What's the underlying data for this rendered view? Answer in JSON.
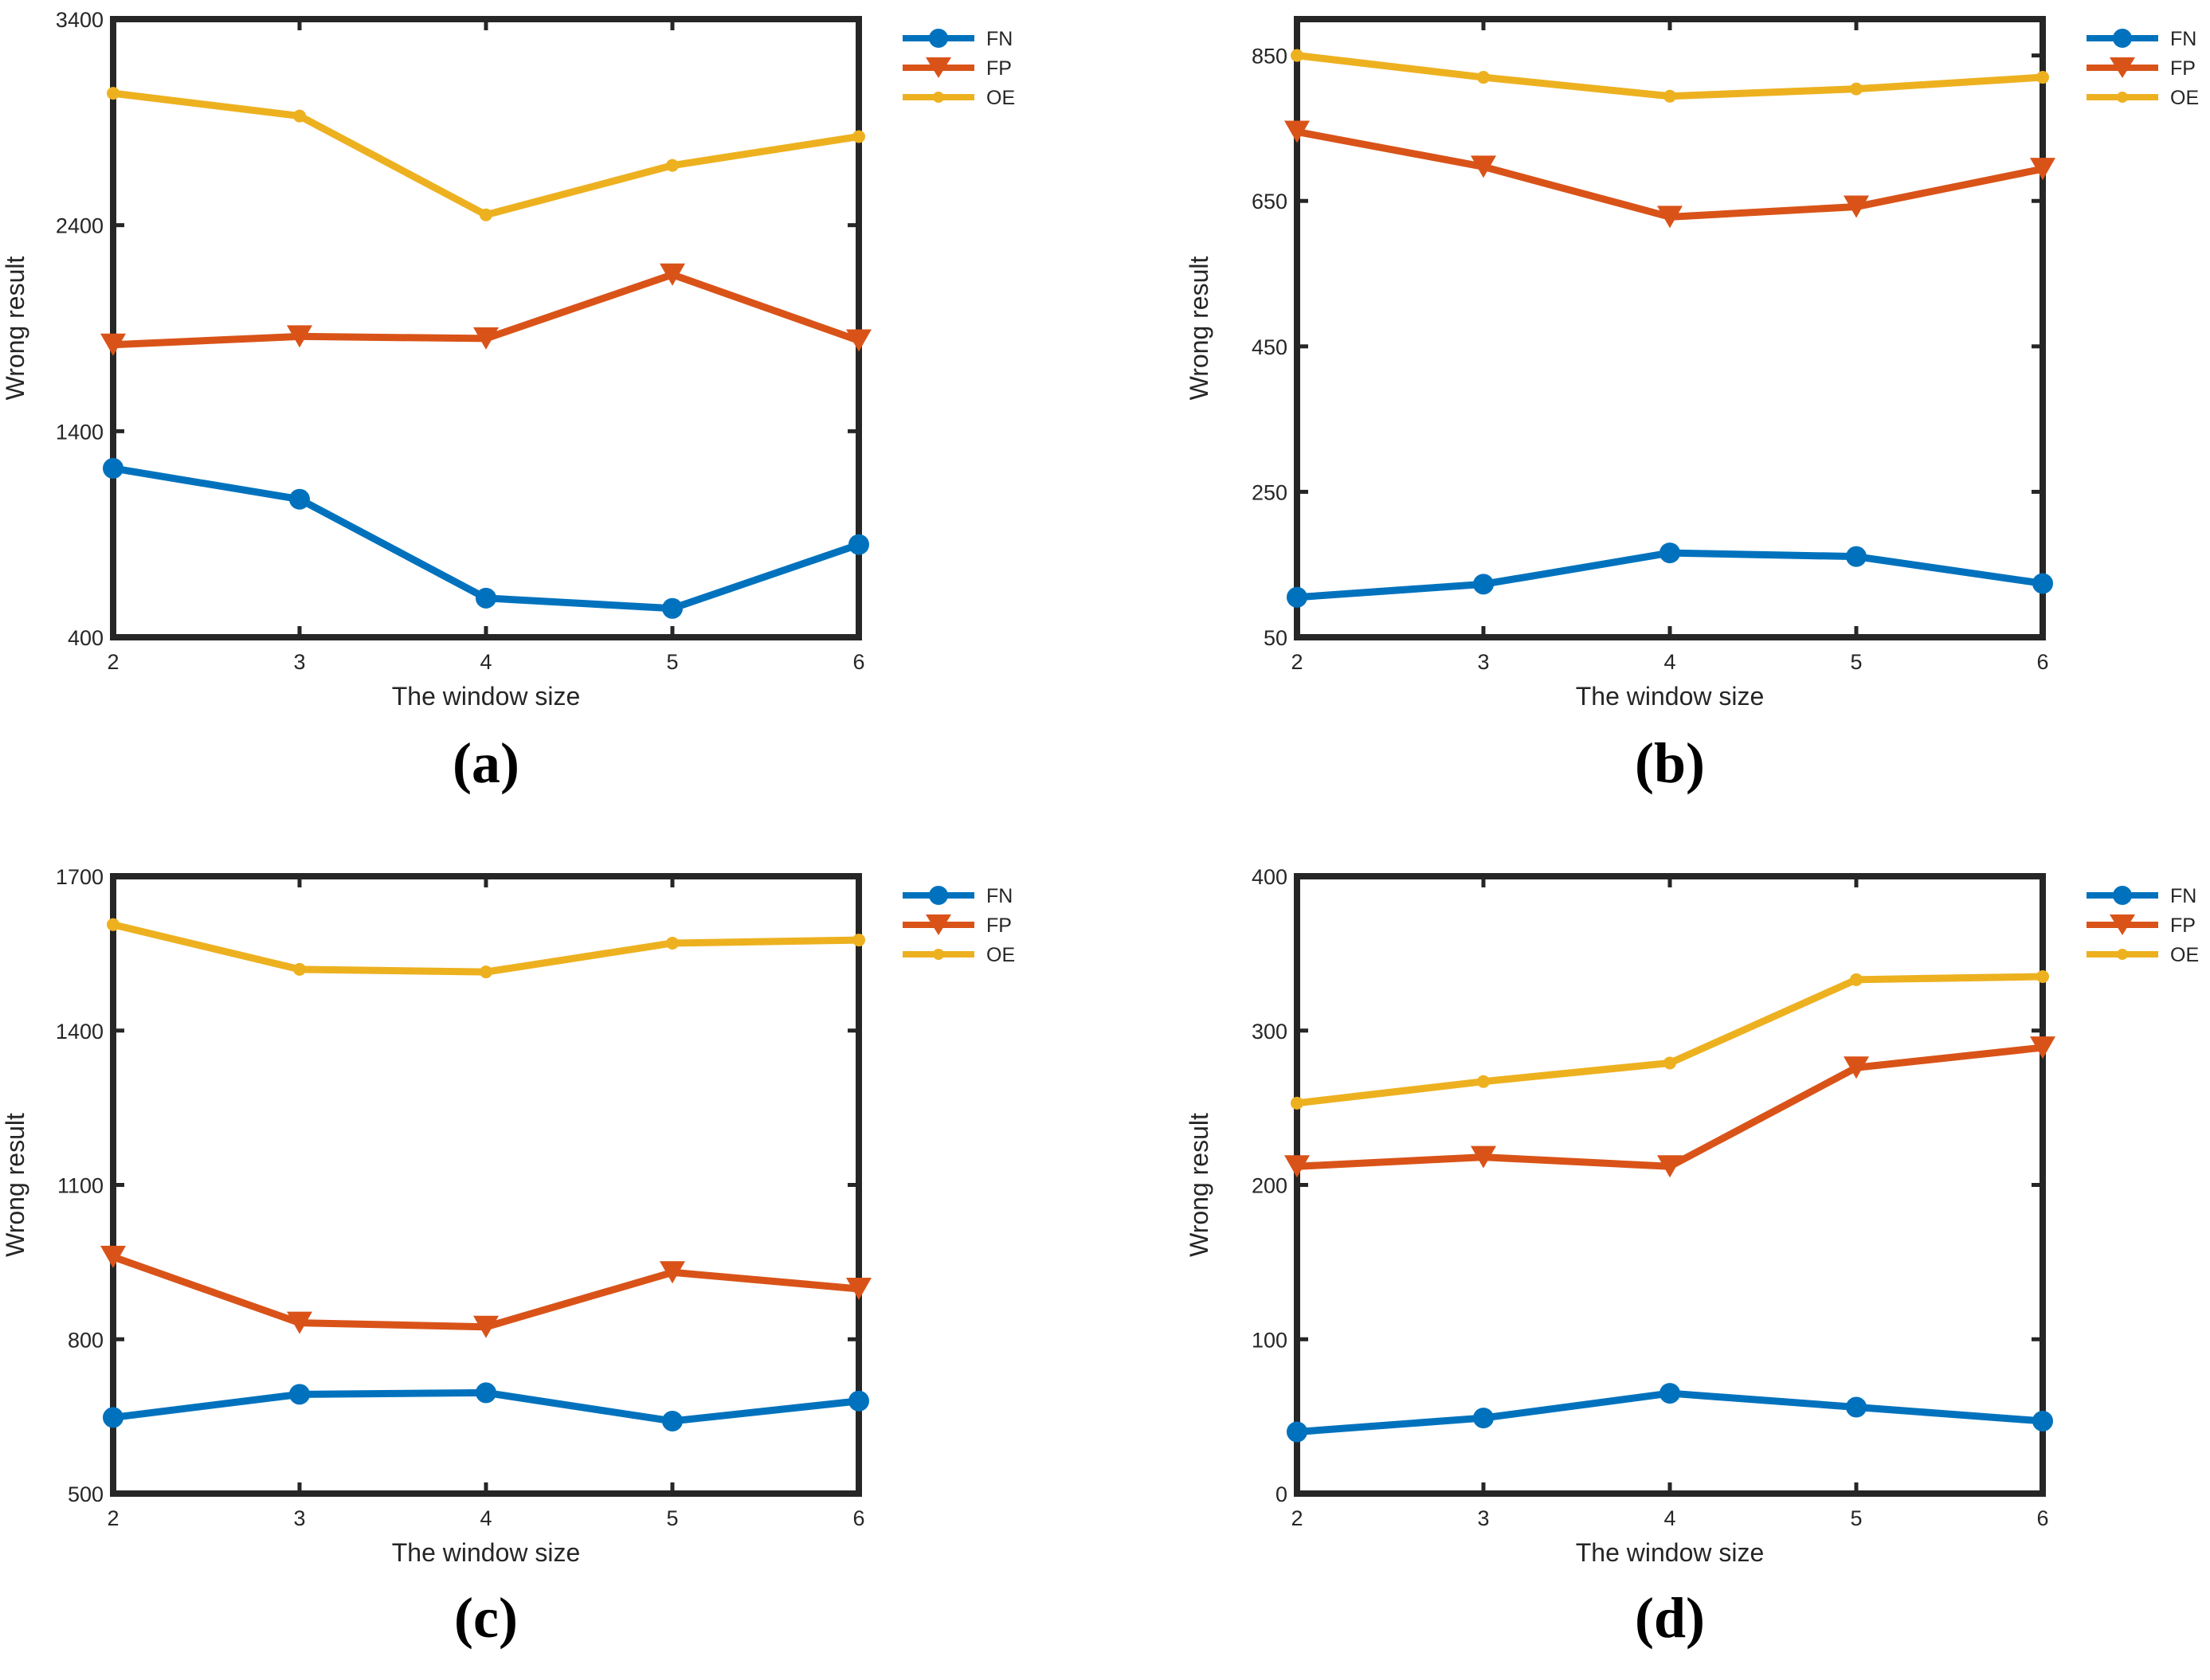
{
  "colors": {
    "axis": "#262626",
    "FN": "#0072BD",
    "FP": "#D95319",
    "OE": "#EDB120"
  },
  "chart_data": [
    {
      "panel": "a",
      "type": "line",
      "caption": "(a)",
      "xlabel": "The window size",
      "ylabel": "Wrong result",
      "x": [
        2,
        3,
        4,
        5,
        6
      ],
      "xticks": [
        "2",
        "3",
        "4",
        "5",
        "6"
      ],
      "ylim": [
        400,
        3400
      ],
      "yticks": [
        "400",
        "1400",
        "2400",
        "3400"
      ],
      "grid": false,
      "legend": "top-right",
      "series": [
        {
          "name": "FN",
          "marker": "circle",
          "values": [
            1220,
            1070,
            590,
            540,
            850
          ]
        },
        {
          "name": "FP",
          "marker": "triangle-down",
          "values": [
            1820,
            1860,
            1850,
            2160,
            1840
          ]
        },
        {
          "name": "OE",
          "marker": "point",
          "values": [
            3040,
            2930,
            2450,
            2690,
            2830
          ]
        }
      ]
    },
    {
      "panel": "b",
      "type": "line",
      "caption": "(b)",
      "xlabel": "The window size",
      "ylabel": "Wrong result",
      "x": [
        2,
        3,
        4,
        5,
        6
      ],
      "xticks": [
        "2",
        "3",
        "4",
        "5",
        "6"
      ],
      "ylim": [
        50,
        900
      ],
      "yticks": [
        "50",
        "250",
        "450",
        "650",
        "850"
      ],
      "grid": false,
      "legend": "top-right",
      "series": [
        {
          "name": "FN",
          "marker": "circle",
          "values": [
            105,
            123,
            166,
            161,
            124
          ]
        },
        {
          "name": "FP",
          "marker": "triangle-down",
          "values": [
            745,
            697,
            628,
            642,
            694
          ]
        },
        {
          "name": "OE",
          "marker": "point",
          "values": [
            850,
            820,
            794,
            804,
            820
          ]
        }
      ]
    },
    {
      "panel": "c",
      "type": "line",
      "caption": "(c)",
      "xlabel": "The window size",
      "ylabel": "Wrong result",
      "x": [
        2,
        3,
        4,
        5,
        6
      ],
      "xticks": [
        "2",
        "3",
        "4",
        "5",
        "6"
      ],
      "ylim": [
        500,
        1700
      ],
      "yticks": [
        "500",
        "800",
        "1100",
        "1400",
        "1700"
      ],
      "grid": false,
      "legend": "top-right",
      "series": [
        {
          "name": "FN",
          "marker": "circle",
          "values": [
            648,
            693,
            696,
            641,
            680
          ]
        },
        {
          "name": "FP",
          "marker": "triangle-down",
          "values": [
            960,
            832,
            824,
            930,
            898
          ]
        },
        {
          "name": "OE",
          "marker": "point",
          "values": [
            1606,
            1519,
            1514,
            1570,
            1576
          ]
        }
      ]
    },
    {
      "panel": "d",
      "type": "line",
      "caption": "(d)",
      "xlabel": "The window size",
      "ylabel": "Wrong result",
      "x": [
        2,
        3,
        4,
        5,
        6
      ],
      "xticks": [
        "2",
        "3",
        "4",
        "5",
        "6"
      ],
      "ylim": [
        0,
        400
      ],
      "yticks": [
        "0",
        "100",
        "200",
        "300",
        "400"
      ],
      "grid": false,
      "legend": "top-right",
      "series": [
        {
          "name": "FN",
          "marker": "circle",
          "values": [
            40,
            49,
            65,
            56,
            47
          ]
        },
        {
          "name": "FP",
          "marker": "triangle-down",
          "values": [
            212,
            218,
            212,
            276,
            289
          ]
        },
        {
          "name": "OE",
          "marker": "point",
          "values": [
            253,
            267,
            279,
            333,
            335
          ]
        }
      ]
    }
  ]
}
